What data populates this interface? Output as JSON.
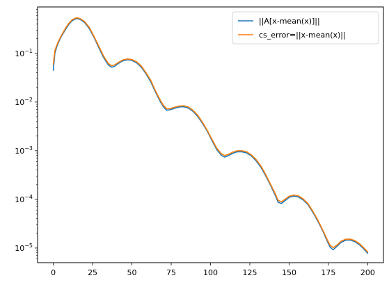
{
  "chart_data": {
    "type": "line",
    "title": "",
    "xlabel": "",
    "ylabel": "",
    "xlim": [
      -10,
      210
    ],
    "ylim": [
      5e-06,
      0.9
    ],
    "yscale": "log",
    "grid": false,
    "legend_position": "top-right",
    "x_ticks": [
      0,
      25,
      50,
      75,
      100,
      125,
      150,
      175,
      200
    ],
    "x_tick_labels": [
      "0",
      "25",
      "50",
      "75",
      "100",
      "125",
      "150",
      "175",
      "200"
    ],
    "y_ticks": [
      1e-05,
      0.0001,
      0.001,
      0.01,
      0.1
    ],
    "y_tick_labels": [
      {
        "base": "10",
        "exp": "−5"
      },
      {
        "base": "10",
        "exp": "−4"
      },
      {
        "base": "10",
        "exp": "−3"
      },
      {
        "base": "10",
        "exp": "−2"
      },
      {
        "base": "10",
        "exp": "−1"
      }
    ],
    "series": [
      {
        "name": "||A[x-mean(x)]||",
        "color": "#1f77b4",
        "points": [
          [
            0,
            0.045
          ],
          [
            1,
            0.1
          ],
          [
            2,
            0.13
          ],
          [
            3,
            0.16
          ],
          [
            5,
            0.22
          ],
          [
            8,
            0.32
          ],
          [
            10,
            0.4
          ],
          [
            12,
            0.47
          ],
          [
            14,
            0.51
          ],
          [
            15,
            0.52
          ],
          [
            17,
            0.5
          ],
          [
            20,
            0.43
          ],
          [
            23,
            0.32
          ],
          [
            26,
            0.21
          ],
          [
            29,
            0.13
          ],
          [
            32,
            0.082
          ],
          [
            35,
            0.058
          ],
          [
            37,
            0.052
          ],
          [
            39,
            0.054
          ],
          [
            41,
            0.061
          ],
          [
            44,
            0.07
          ],
          [
            47,
            0.074
          ],
          [
            50,
            0.072
          ],
          [
            53,
            0.064
          ],
          [
            56,
            0.052
          ],
          [
            59,
            0.038
          ],
          [
            62,
            0.026
          ],
          [
            65,
            0.016
          ],
          [
            68,
            0.0103
          ],
          [
            70,
            0.008
          ],
          [
            72,
            0.0068
          ],
          [
            74,
            0.0069
          ],
          [
            77,
            0.0074
          ],
          [
            80,
            0.0079
          ],
          [
            83,
            0.008
          ],
          [
            86,
            0.0075
          ],
          [
            89,
            0.0064
          ],
          [
            92,
            0.005
          ],
          [
            95,
            0.0036
          ],
          [
            98,
            0.0025
          ],
          [
            101,
            0.0016
          ],
          [
            104,
            0.00105
          ],
          [
            107,
            0.0008
          ],
          [
            109,
            0.00074
          ],
          [
            111,
            0.00078
          ],
          [
            114,
            0.00088
          ],
          [
            117,
            0.00095
          ],
          [
            120,
            0.00095
          ],
          [
            123,
            0.0009
          ],
          [
            126,
            0.00078
          ],
          [
            129,
            0.00062
          ],
          [
            132,
            0.00046
          ],
          [
            135,
            0.00031
          ],
          [
            138,
            0.0002
          ],
          [
            141,
            0.000125
          ],
          [
            143,
            8.8e-05
          ],
          [
            145,
            8.2e-05
          ],
          [
            147,
            9.2e-05
          ],
          [
            150,
            0.00011
          ],
          [
            153,
            0.000117
          ],
          [
            156,
            0.000112
          ],
          [
            159,
            9.7e-05
          ],
          [
            162,
            7.8e-05
          ],
          [
            165,
            5.5e-05
          ],
          [
            168,
            3.7e-05
          ],
          [
            171,
            2.4e-05
          ],
          [
            174,
            1.45e-05
          ],
          [
            176,
            1.05e-05
          ],
          [
            178,
            9.2e-06
          ],
          [
            180,
            1.05e-05
          ],
          [
            183,
            1.3e-05
          ],
          [
            186,
            1.45e-05
          ],
          [
            189,
            1.46e-05
          ],
          [
            192,
            1.34e-05
          ],
          [
            195,
            1.15e-05
          ],
          [
            198,
            9.2e-06
          ],
          [
            200,
            7.8e-06
          ]
        ]
      },
      {
        "name": "cs_error=||x-mean(x)||",
        "color": "#ff7f0e",
        "points": [
          [
            0,
            0.06
          ],
          [
            1,
            0.115
          ],
          [
            2,
            0.14
          ],
          [
            3,
            0.17
          ],
          [
            5,
            0.23
          ],
          [
            8,
            0.34
          ],
          [
            10,
            0.42
          ],
          [
            12,
            0.49
          ],
          [
            14,
            0.53
          ],
          [
            15,
            0.54
          ],
          [
            17,
            0.52
          ],
          [
            20,
            0.45
          ],
          [
            23,
            0.34
          ],
          [
            26,
            0.22
          ],
          [
            29,
            0.14
          ],
          [
            32,
            0.088
          ],
          [
            35,
            0.062
          ],
          [
            37,
            0.056
          ],
          [
            39,
            0.058
          ],
          [
            41,
            0.064
          ],
          [
            44,
            0.073
          ],
          [
            47,
            0.077
          ],
          [
            50,
            0.075
          ],
          [
            53,
            0.067
          ],
          [
            56,
            0.055
          ],
          [
            59,
            0.04
          ],
          [
            62,
            0.028
          ],
          [
            65,
            0.017
          ],
          [
            68,
            0.011
          ],
          [
            70,
            0.0086
          ],
          [
            72,
            0.0073
          ],
          [
            74,
            0.0073
          ],
          [
            77,
            0.0078
          ],
          [
            80,
            0.0083
          ],
          [
            83,
            0.0084
          ],
          [
            86,
            0.0079
          ],
          [
            89,
            0.0067
          ],
          [
            92,
            0.0053
          ],
          [
            95,
            0.0038
          ],
          [
            98,
            0.0026
          ],
          [
            101,
            0.0017
          ],
          [
            104,
            0.00112
          ],
          [
            107,
            0.00086
          ],
          [
            109,
            0.0008
          ],
          [
            111,
            0.00083
          ],
          [
            114,
            0.00093
          ],
          [
            117,
            0.001
          ],
          [
            120,
            0.001
          ],
          [
            123,
            0.00095
          ],
          [
            126,
            0.00082
          ],
          [
            129,
            0.00066
          ],
          [
            132,
            0.00049
          ],
          [
            135,
            0.00033
          ],
          [
            138,
            0.00021
          ],
          [
            141,
            0.000135
          ],
          [
            143,
            9.6e-05
          ],
          [
            145,
            8.9e-05
          ],
          [
            147,
            9.8e-05
          ],
          [
            150,
            0.000116
          ],
          [
            153,
            0.000123
          ],
          [
            156,
            0.000118
          ],
          [
            159,
            0.000102
          ],
          [
            162,
            8.2e-05
          ],
          [
            165,
            5.8e-05
          ],
          [
            168,
            3.9e-05
          ],
          [
            171,
            2.5e-05
          ],
          [
            174,
            1.55e-05
          ],
          [
            176,
            1.15e-05
          ],
          [
            178,
            1.02e-05
          ],
          [
            180,
            1.12e-05
          ],
          [
            183,
            1.38e-05
          ],
          [
            186,
            1.52e-05
          ],
          [
            189,
            1.53e-05
          ],
          [
            192,
            1.41e-05
          ],
          [
            195,
            1.21e-05
          ],
          [
            198,
            9.7e-06
          ],
          [
            200,
            8.3e-06
          ]
        ]
      }
    ]
  }
}
